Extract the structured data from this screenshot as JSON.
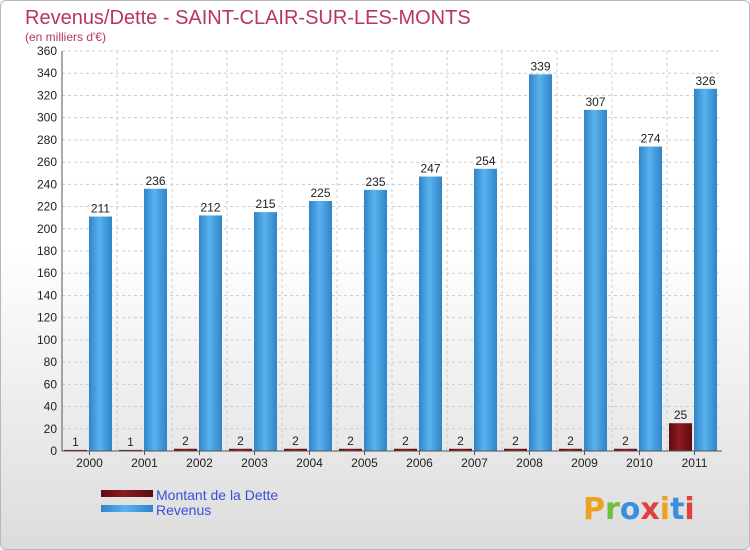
{
  "chart_data": {
    "type": "bar",
    "title": "Revenus/Dette - SAINT-CLAIR-SUR-LES-MONTS",
    "subtitle": "(en milliers d'€)",
    "categories": [
      "2000",
      "2001",
      "2002",
      "2003",
      "2004",
      "2005",
      "2006",
      "2007",
      "2008",
      "2009",
      "2010",
      "2011"
    ],
    "series": [
      {
        "name": "Montant de la Dette",
        "color": "#7a1216",
        "values": [
          1,
          1,
          2,
          2,
          2,
          2,
          2,
          2,
          2,
          2,
          2,
          25
        ]
      },
      {
        "name": "Revenus",
        "color": "#3d9ee6",
        "values": [
          211,
          236,
          212,
          215,
          225,
          235,
          247,
          254,
          339,
          307,
          274,
          326
        ]
      }
    ],
    "ylim": [
      0,
      360
    ],
    "ytick_step": 20,
    "grid": true,
    "legend": "bottom-left"
  },
  "logo": {
    "letters": [
      "P",
      "r",
      "o",
      "x",
      "i",
      "t",
      "i"
    ],
    "colors": [
      "#f0a020",
      "#6fbf3f",
      "#3a8fe0",
      "#e04040",
      "#f0a020",
      "#3a8fe0",
      "#e04040"
    ]
  }
}
